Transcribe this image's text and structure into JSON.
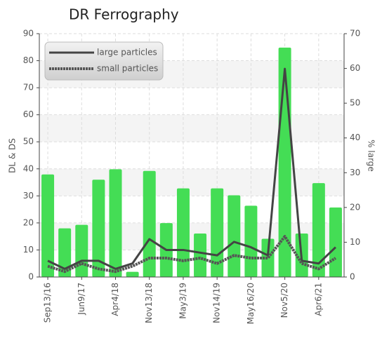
{
  "chart_data": {
    "type": "bar-line",
    "title": "DR Ferrography",
    "categories": [
      "Sep13/16",
      null,
      "Jun9/17",
      null,
      "Apr4/18",
      null,
      "Nov13/18",
      null,
      "May3/19",
      null,
      "Nov14/19",
      null,
      "May16/20",
      null,
      "Nov5/20",
      null,
      "Apr6/21",
      null
    ],
    "y_label": "DL & DS",
    "y2_label": "% large",
    "ylim": [
      0,
      90
    ],
    "yticks": [
      0,
      10,
      20,
      30,
      40,
      50,
      60,
      70,
      80,
      90
    ],
    "y2lim": [
      0,
      70
    ],
    "y2ticks": [
      0,
      10,
      20,
      30,
      40,
      50,
      60,
      70
    ],
    "grid": true,
    "legend": "upper left",
    "bars": {
      "axis": "y2",
      "color": "#44dd55",
      "values": [
        29.5,
        14,
        15,
        28,
        31,
        1.5,
        30.5,
        15.5,
        25.5,
        12.5,
        25.5,
        23.5,
        20.5,
        11,
        66,
        12.5,
        27,
        20
      ]
    },
    "series": [
      {
        "name": "large particles",
        "color": "#444444",
        "values": [
          6,
          3,
          6,
          6,
          3,
          5,
          14,
          10,
          10,
          9,
          8,
          13,
          11,
          8,
          77,
          6,
          5,
          11
        ]
      },
      {
        "name": "small particles",
        "color": "#555555",
        "values": [
          4,
          2,
          5,
          3,
          2,
          4,
          7,
          7,
          6,
          7,
          5,
          8,
          7,
          7,
          15,
          5,
          3,
          7
        ]
      }
    ]
  }
}
